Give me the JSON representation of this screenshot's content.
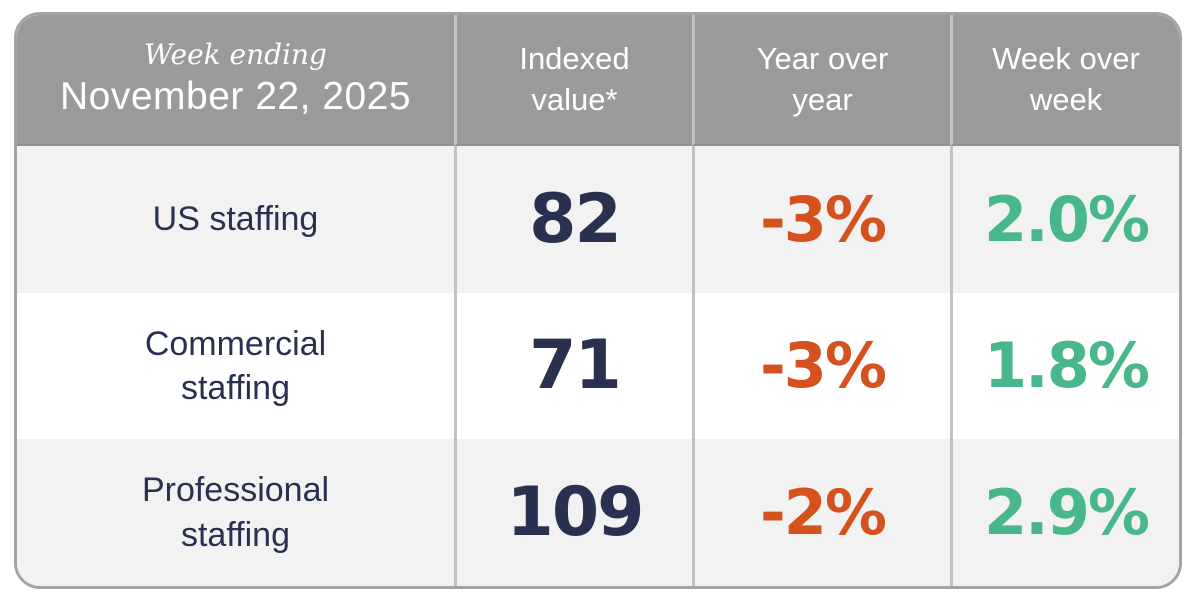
{
  "colors": {
    "header_bg": "#9a9a9a",
    "header_text": "#ffffff",
    "row_bg": "#f2f2f2",
    "row_alt_bg": "#ffffff",
    "divider": "#c2c2c2",
    "outer_border": "#a4a4a4",
    "navy": "#2a3150",
    "orange": "#d5511e",
    "green": "#48b78c"
  },
  "table": {
    "header": {
      "week_ending_label": "Week ending",
      "date": "November 22, 2025",
      "columns": [
        {
          "label": "Indexed value*"
        },
        {
          "label": "Year over year"
        },
        {
          "label": "Week over week"
        }
      ]
    },
    "rows": [
      {
        "label": "US staffing",
        "indexed_value": "82",
        "year_over_year": "-3%",
        "week_over_week": "2.0%"
      },
      {
        "label": "Commercial staffing",
        "indexed_value": "71",
        "year_over_year": "-3%",
        "week_over_week": "1.8%"
      },
      {
        "label": "Professional staffing",
        "indexed_value": "109",
        "year_over_year": "-2%",
        "week_over_week": "2.9%"
      }
    ]
  },
  "chart_data": {
    "type": "table",
    "title": "Week ending November 22, 2025",
    "columns": [
      "Week ending November 22, 2025",
      "Indexed value*",
      "Year over year",
      "Week over week"
    ],
    "rows": [
      [
        "US staffing",
        82,
        "-3%",
        "2.0%"
      ],
      [
        "Commercial staffing",
        71,
        "-3%",
        "1.8%"
      ],
      [
        "Professional staffing",
        109,
        "-2%",
        "2.9%"
      ]
    ],
    "notes": "Indexed values in navy; year-over-year change in orange (negative); week-over-week change in green (positive)."
  }
}
